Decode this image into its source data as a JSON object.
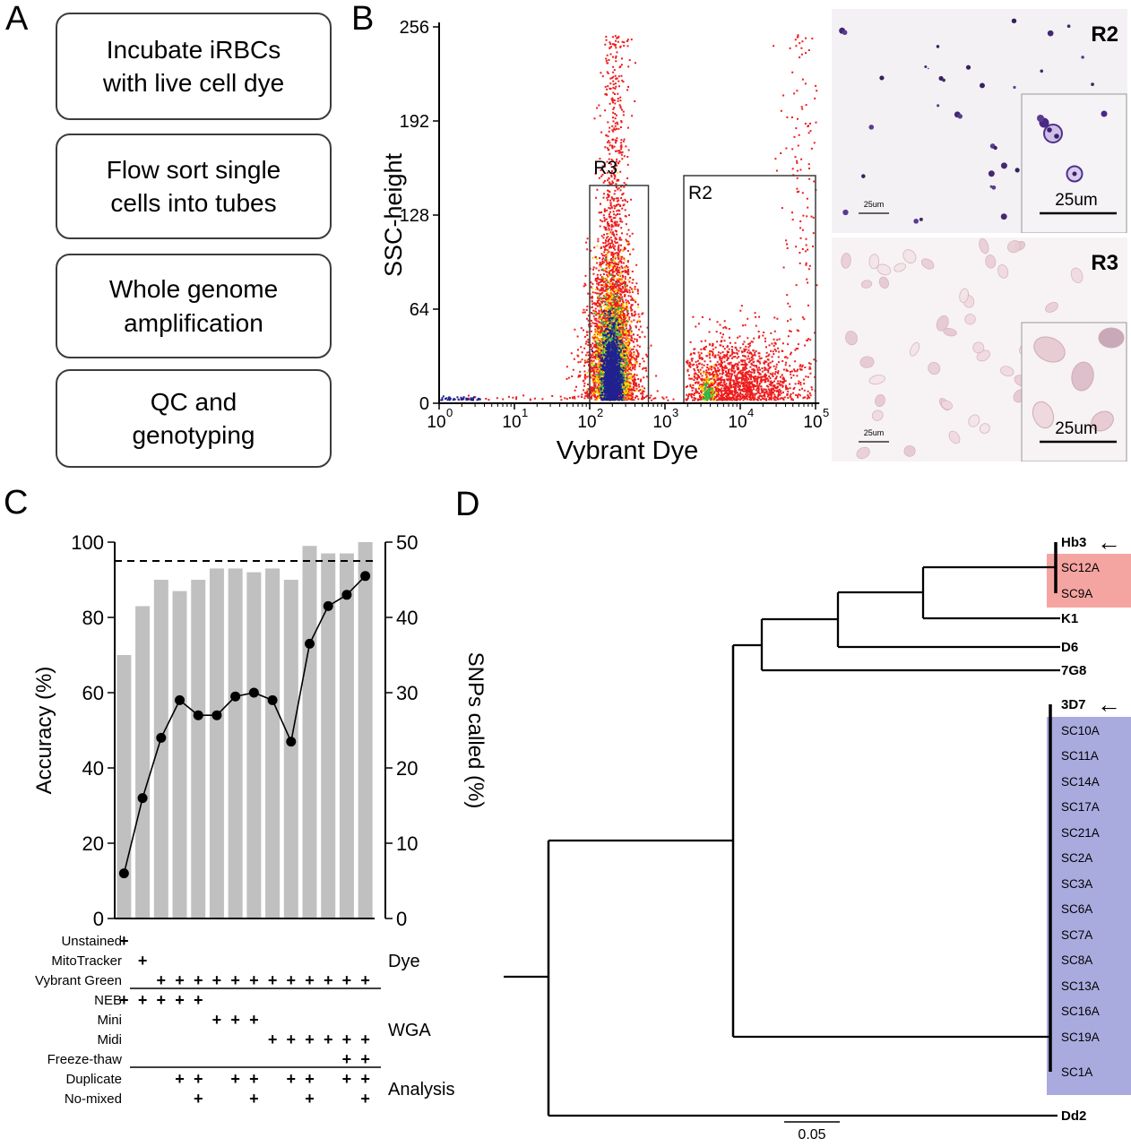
{
  "panels": {
    "a": "A",
    "b": "B",
    "c": "C",
    "d": "D"
  },
  "panel_a": {
    "steps": [
      "Incubate iRBCs\nwith live cell dye",
      "Flow sort single\ncells into tubes",
      "Whole genome\namplification",
      "QC and\ngenotyping"
    ]
  },
  "panel_b": {
    "flow_plot": {
      "x_axis": {
        "label": "Vybrant Dye",
        "tick_base": "10",
        "tick_exponents": [
          "0",
          "1",
          "2",
          "3",
          "4",
          "5"
        ]
      },
      "y_axis": {
        "label": "SSC-height",
        "ticks": [
          0,
          64,
          128,
          192,
          256
        ]
      },
      "gates": [
        {
          "name": "R3"
        },
        {
          "name": "R2"
        }
      ],
      "populations": [
        {
          "name": "main-red",
          "color": "#ee1c1c",
          "n": 3000,
          "x": 2.3,
          "sx": 0.19,
          "ymul": 55,
          "taper": true
        },
        {
          "name": "main-spray-red",
          "color": "#ee1c1c",
          "n": 280,
          "x": 2.33,
          "sx": 0.1,
          "yuni": [
            120,
            250
          ]
        },
        {
          "name": "main-yellow",
          "color": "#ffd400",
          "n": 1000,
          "x": 2.3,
          "sx": 0.115,
          "ymul": 38
        },
        {
          "name": "main-green",
          "color": "#2eb34d",
          "n": 700,
          "x": 2.3,
          "sx": 0.085,
          "ymul": 30
        },
        {
          "name": "main-blue",
          "color": "#20208f",
          "n": 1300,
          "x": 2.3,
          "sx": 0.06,
          "ymul": 22
        },
        {
          "name": "r2-red",
          "color": "#ee1c1c",
          "n": 1500,
          "x": 3.95,
          "sx": 0.42,
          "ymul": 20,
          "xclip": [
            3.28,
            5.02
          ]
        },
        {
          "name": "r2-yellow",
          "color": "#ffd400",
          "n": 110,
          "x": 3.57,
          "sx": 0.05,
          "ymul": 9
        },
        {
          "name": "r2-green",
          "color": "#2eb34d",
          "n": 50,
          "x": 3.57,
          "sx": 0.032,
          "ymul": 6
        },
        {
          "name": "topright-red",
          "color": "#ee1c1c",
          "n": 140,
          "x": 4.82,
          "sx": 0.15,
          "yuni": [
            20,
            252
          ],
          "xclip": [
            4.3,
            5.02
          ]
        },
        {
          "name": "baseline-red",
          "color": "#ee1c1c",
          "n": 90,
          "xuni": [
            0.1,
            4.95
          ],
          "ymul": 1.5
        },
        {
          "name": "origin-blue",
          "color": "#20208f",
          "n": 50,
          "xuni": [
            0.0,
            0.55
          ],
          "ymul": 1.2
        }
      ]
    },
    "micrographs": [
      {
        "label": "R2",
        "main_scale_bar": "25um",
        "inset_scale_bar": "25um"
      },
      {
        "label": "R3",
        "main_scale_bar": "25um",
        "inset_scale_bar": "25um"
      }
    ]
  },
  "chart_data": {
    "type": "bar",
    "title": "",
    "left_axis": {
      "label": "Accuracy (%)",
      "ticks": [
        0,
        20,
        40,
        60,
        80,
        100
      ],
      "range": [
        0,
        100
      ]
    },
    "right_axis": {
      "label": "SNPs called (%)",
      "ticks": [
        0,
        10,
        20,
        30,
        40,
        50
      ],
      "range": [
        0,
        50
      ]
    },
    "reference_line_accuracy_pct": 95,
    "n_columns": 14,
    "series": [
      {
        "name": "Accuracy (%)",
        "type": "bar",
        "axis": "left",
        "values": [
          70,
          83,
          90,
          87,
          90,
          93,
          93,
          92,
          93,
          90,
          99,
          97,
          97,
          100
        ]
      },
      {
        "name": "SNPs called (%)",
        "type": "scatter-line",
        "axis": "right",
        "values": [
          6,
          16,
          24,
          29,
          27,
          27,
          29.5,
          30,
          29,
          23.5,
          36.5,
          41.5,
          43,
          45.5
        ]
      }
    ],
    "conditions": {
      "plus_symbol": "+",
      "rows": [
        {
          "label": "Unstained",
          "cols": [
            1
          ]
        },
        {
          "label": "MitoTracker",
          "cols": [
            2
          ]
        },
        {
          "label": "Vybrant Green",
          "cols": [
            3,
            4,
            5,
            6,
            7,
            8,
            9,
            10,
            11,
            12,
            13,
            14
          ]
        },
        {
          "label": "NEB",
          "cols": [
            1,
            2,
            3,
            4,
            5
          ]
        },
        {
          "label": "Mini",
          "cols": [
            6,
            7,
            8
          ]
        },
        {
          "label": "Midi",
          "cols": [
            9,
            10,
            11,
            12,
            13,
            14
          ]
        },
        {
          "label": "Freeze-thaw",
          "cols": [
            13,
            14
          ]
        },
        {
          "label": "Duplicate",
          "cols": [
            4,
            5,
            7,
            8,
            10,
            11,
            13,
            14
          ]
        },
        {
          "label": "No-mixed",
          "cols": [
            5,
            8,
            11,
            14
          ]
        }
      ],
      "separators_after_rows": [
        2,
        6
      ],
      "groups": [
        {
          "label": "Dye",
          "rows": [
            0,
            2
          ]
        },
        {
          "label": "WGA",
          "rows": [
            3,
            6
          ]
        },
        {
          "label": "Analysis",
          "rows": [
            7,
            8
          ]
        }
      ]
    }
  },
  "panel_d": {
    "arrow_symbol": "←",
    "scale_bar_label": "0.05",
    "highlights": {
      "red": "#f5a5a1",
      "blue": "#a9abdf"
    },
    "taxa": [
      {
        "name": "Hb3",
        "arrow": true
      },
      {
        "name": "SC12A",
        "group": "red"
      },
      {
        "name": "SC9A",
        "group": "red"
      },
      {
        "name": "K1"
      },
      {
        "name": "D6"
      },
      {
        "name": "7G8"
      },
      {
        "name": "3D7",
        "arrow": true
      },
      {
        "name": "SC10A",
        "group": "blue"
      },
      {
        "name": "SC11A",
        "group": "blue"
      },
      {
        "name": "SC14A",
        "group": "blue"
      },
      {
        "name": "SC17A",
        "group": "blue"
      },
      {
        "name": "SC21A",
        "group": "blue"
      },
      {
        "name": "SC2A",
        "group": "blue"
      },
      {
        "name": "SC3A",
        "group": "blue"
      },
      {
        "name": "SC6A",
        "group": "blue"
      },
      {
        "name": "SC7A",
        "group": "blue"
      },
      {
        "name": "SC8A",
        "group": "blue"
      },
      {
        "name": "SC13A",
        "group": "blue"
      },
      {
        "name": "SC16A",
        "group": "blue"
      },
      {
        "name": "SC19A",
        "group": "blue"
      },
      {
        "name": "SC1A",
        "group": "blue"
      },
      {
        "name": "Dd2"
      }
    ]
  }
}
